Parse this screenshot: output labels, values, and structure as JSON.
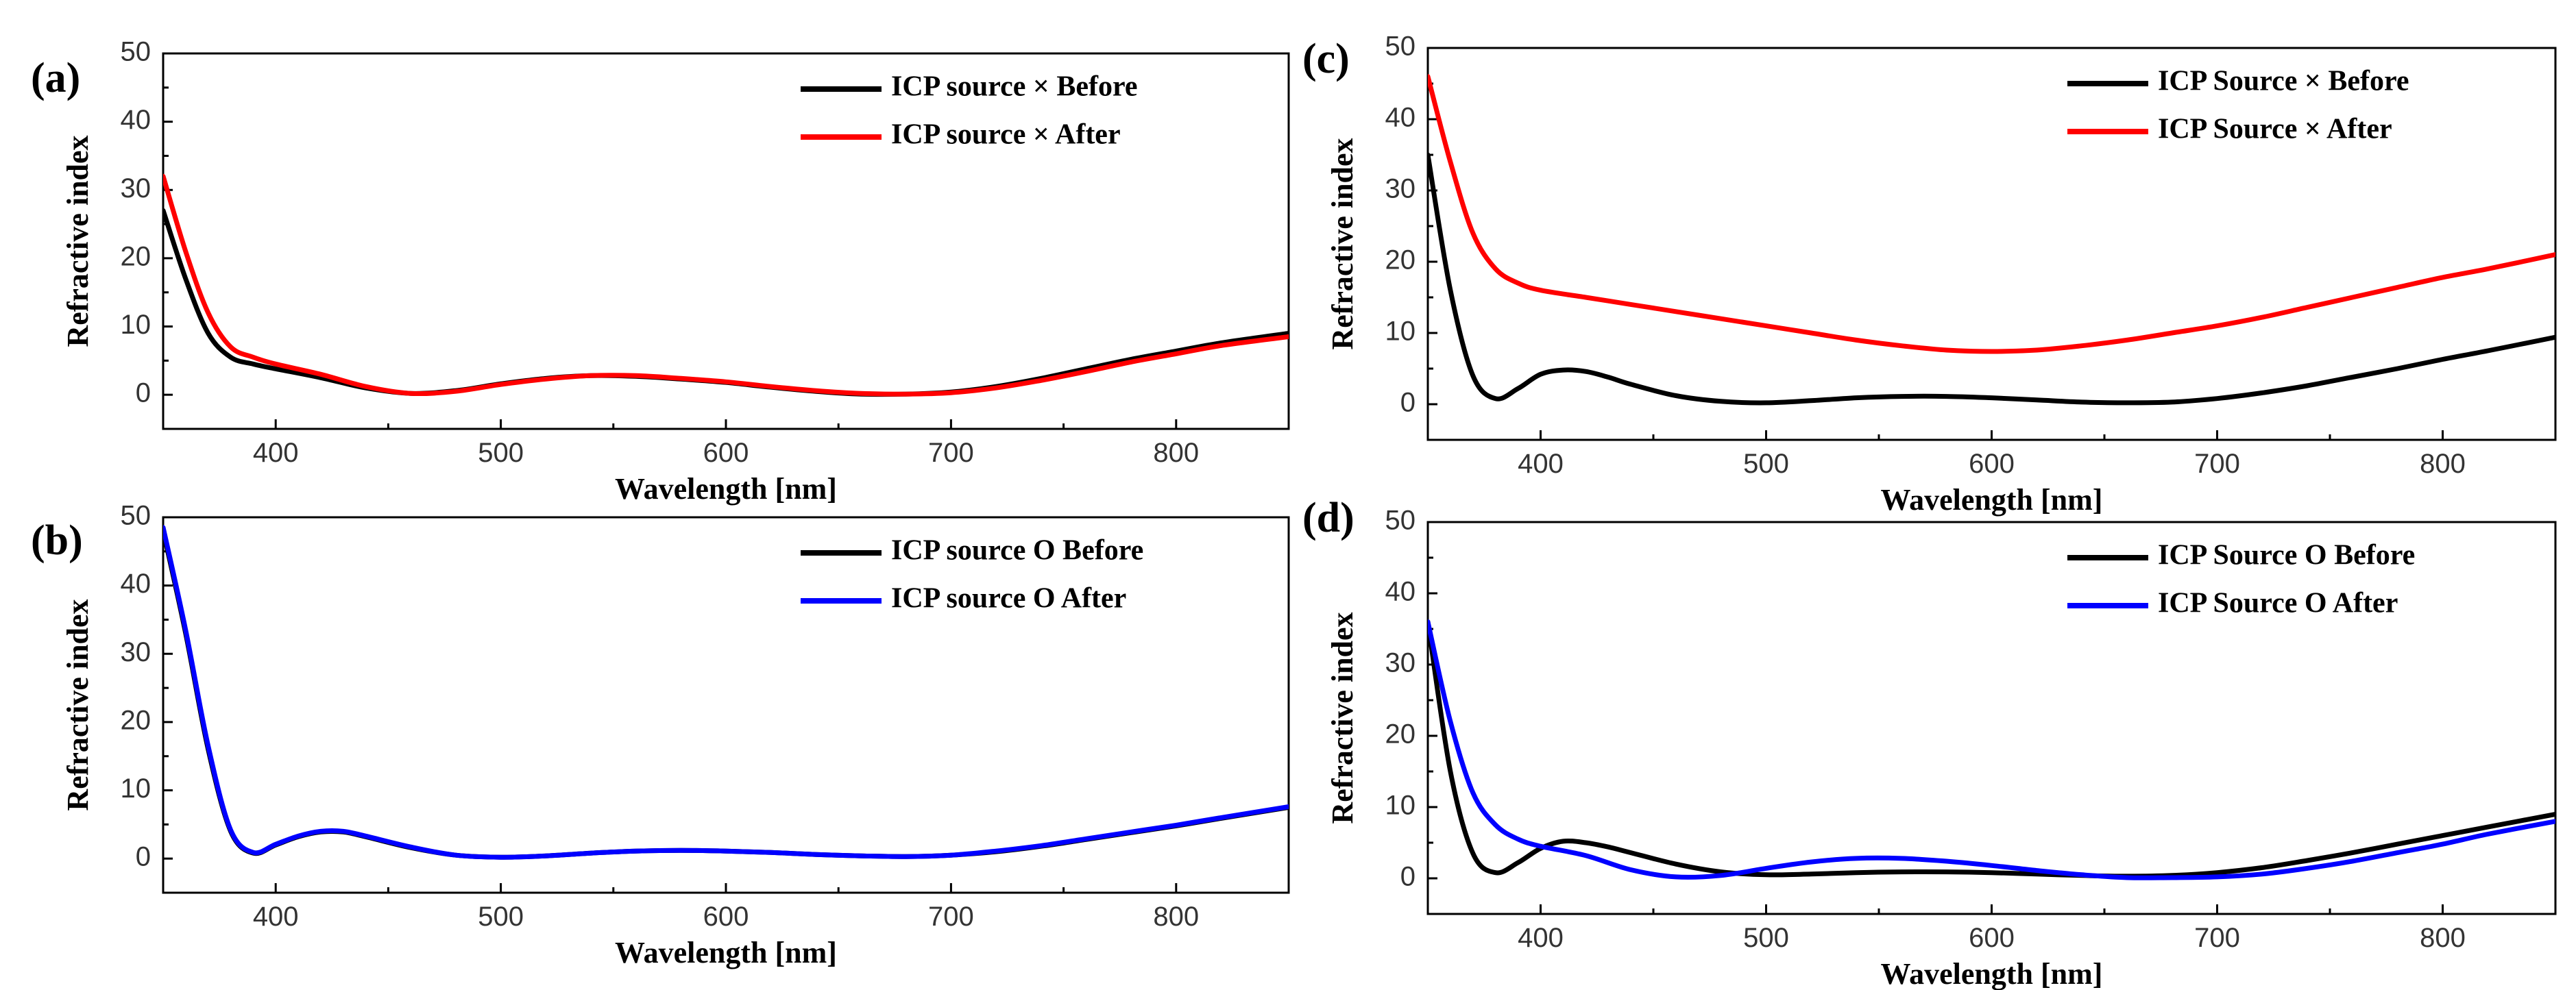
{
  "chart_data": [
    {
      "panel": "(a)",
      "type": "line",
      "xlabel": "Wavelength [nm]",
      "ylabel": "Refractive index",
      "xlim": [
        350,
        850
      ],
      "ylim": [
        -5,
        50
      ],
      "xticks": [
        400,
        500,
        600,
        700,
        800
      ],
      "yticks": [
        0,
        10,
        20,
        30,
        40,
        50
      ],
      "legend_position": "top-right",
      "series": [
        {
          "name": "ICP source × Before",
          "color": "#000000",
          "x": [
            350,
            360,
            370,
            380,
            390,
            400,
            420,
            440,
            460,
            480,
            500,
            520,
            540,
            560,
            580,
            600,
            620,
            640,
            660,
            680,
            700,
            720,
            740,
            760,
            780,
            800,
            820,
            850
          ],
          "y": [
            27,
            17,
            9,
            5.5,
            4.5,
            3.8,
            2.5,
            1.0,
            0.2,
            0.6,
            1.6,
            2.4,
            2.8,
            2.7,
            2.3,
            1.8,
            1.1,
            0.5,
            0.1,
            0.1,
            0.4,
            1.2,
            2.4,
            3.8,
            5.2,
            6.4,
            7.6,
            9
          ]
        },
        {
          "name": "ICP source × After",
          "color": "#ff0000",
          "x": [
            350,
            360,
            370,
            380,
            390,
            400,
            420,
            440,
            460,
            480,
            500,
            520,
            540,
            560,
            580,
            600,
            620,
            640,
            660,
            680,
            700,
            720,
            740,
            760,
            780,
            800,
            820,
            850
          ],
          "y": [
            32,
            21,
            12,
            7,
            5.5,
            4.5,
            3.0,
            1.2,
            0.2,
            0.5,
            1.5,
            2.3,
            2.8,
            2.8,
            2.4,
            1.9,
            1.2,
            0.6,
            0.2,
            0.1,
            0.3,
            1.0,
            2.1,
            3.4,
            4.8,
            6.0,
            7.2,
            8.5
          ]
        }
      ]
    },
    {
      "panel": "(b)",
      "type": "line",
      "xlabel": "Wavelength [nm]",
      "ylabel": "Refractive index",
      "xlim": [
        350,
        850
      ],
      "ylim": [
        -5,
        50
      ],
      "xticks": [
        400,
        500,
        600,
        700,
        800
      ],
      "yticks": [
        0,
        10,
        20,
        30,
        40,
        50
      ],
      "legend_position": "top-right",
      "series": [
        {
          "name": "ICP source O Before",
          "color": "#000000",
          "x": [
            350,
            360,
            370,
            380,
            390,
            400,
            410,
            420,
            430,
            440,
            460,
            480,
            500,
            520,
            540,
            560,
            580,
            600,
            620,
            640,
            660,
            680,
            700,
            720,
            740,
            760,
            780,
            800,
            820,
            850
          ],
          "y": [
            48,
            33,
            16,
            4,
            0.8,
            2,
            3.2,
            3.9,
            3.9,
            3.2,
            1.6,
            0.5,
            0.2,
            0.4,
            0.8,
            1.1,
            1.2,
            1.1,
            0.9,
            0.6,
            0.4,
            0.3,
            0.5,
            1.0,
            1.8,
            2.8,
            3.8,
            4.8,
            5.9,
            7.5
          ]
        },
        {
          "name": "ICP source O After",
          "color": "#0000ff",
          "x": [
            350,
            360,
            370,
            380,
            390,
            400,
            410,
            420,
            430,
            440,
            460,
            480,
            500,
            520,
            540,
            560,
            580,
            600,
            620,
            640,
            660,
            680,
            700,
            720,
            740,
            760,
            780,
            800,
            820,
            850
          ],
          "y": [
            48.5,
            33.5,
            16.5,
            4.2,
            0.9,
            2.1,
            3.3,
            4.0,
            4.0,
            3.3,
            1.7,
            0.5,
            0.2,
            0.4,
            0.8,
            1.1,
            1.2,
            1.1,
            0.9,
            0.6,
            0.4,
            0.3,
            0.5,
            1.1,
            1.9,
            2.9,
            3.9,
            4.9,
            6.0,
            7.6
          ]
        }
      ]
    },
    {
      "panel": "(c)",
      "type": "line",
      "xlabel": "Wavelength [nm]",
      "ylabel": "Refractive index",
      "xlim": [
        350,
        850
      ],
      "ylim": [
        -5,
        50
      ],
      "xticks": [
        400,
        500,
        600,
        700,
        800
      ],
      "yticks": [
        0,
        10,
        20,
        30,
        40,
        50
      ],
      "legend_position": "top-right",
      "series": [
        {
          "name": "ICP Source × Before",
          "color": "#000000",
          "x": [
            350,
            360,
            370,
            380,
            390,
            400,
            410,
            420,
            430,
            440,
            460,
            480,
            500,
            520,
            540,
            560,
            580,
            600,
            620,
            640,
            660,
            680,
            700,
            720,
            740,
            760,
            780,
            800,
            820,
            850
          ],
          "y": [
            35,
            16,
            4,
            0.8,
            2.2,
            4.2,
            4.8,
            4.6,
            3.8,
            2.8,
            1.2,
            0.4,
            0.2,
            0.5,
            0.9,
            1.1,
            1.1,
            0.9,
            0.6,
            0.3,
            0.2,
            0.3,
            0.8,
            1.6,
            2.6,
            3.8,
            5.0,
            6.3,
            7.5,
            9.4
          ]
        },
        {
          "name": "ICP Source × After",
          "color": "#ff0000",
          "x": [
            350,
            360,
            370,
            380,
            390,
            400,
            420,
            440,
            460,
            480,
            500,
            520,
            540,
            560,
            580,
            600,
            620,
            640,
            660,
            680,
            700,
            720,
            740,
            760,
            780,
            800,
            820,
            850
          ],
          "y": [
            46,
            34,
            24,
            19,
            17,
            16,
            15,
            14,
            13,
            12,
            11,
            10,
            9,
            8.2,
            7.6,
            7.4,
            7.6,
            8.2,
            9.0,
            10,
            11,
            12.2,
            13.6,
            15,
            16.4,
            17.8,
            19,
            21
          ]
        }
      ]
    },
    {
      "panel": "(d)",
      "type": "line",
      "xlabel": "Wavelength [nm]",
      "ylabel": "Refractive index",
      "xlim": [
        350,
        850
      ],
      "ylim": [
        -5,
        50
      ],
      "xticks": [
        400,
        500,
        600,
        700,
        800
      ],
      "yticks": [
        0,
        10,
        20,
        30,
        40,
        50
      ],
      "legend_position": "top-right",
      "series": [
        {
          "name": "ICP Source O Before",
          "color": "#000000",
          "x": [
            350,
            360,
            370,
            380,
            390,
            400,
            410,
            420,
            430,
            440,
            460,
            480,
            500,
            520,
            540,
            560,
            580,
            600,
            620,
            640,
            660,
            680,
            700,
            720,
            740,
            760,
            780,
            800,
            820,
            850
          ],
          "y": [
            36,
            15,
            3.5,
            0.8,
            2.2,
            4.2,
            5.2,
            5.0,
            4.4,
            3.6,
            2.0,
            0.9,
            0.5,
            0.6,
            0.8,
            0.9,
            0.9,
            0.8,
            0.6,
            0.4,
            0.3,
            0.4,
            0.8,
            1.5,
            2.5,
            3.6,
            4.8,
            6.0,
            7.2,
            9
          ]
        },
        {
          "name": "ICP Source O After",
          "color": "#0000ff",
          "x": [
            350,
            360,
            370,
            380,
            390,
            400,
            420,
            440,
            460,
            480,
            500,
            520,
            540,
            560,
            580,
            600,
            620,
            640,
            660,
            680,
            700,
            720,
            740,
            760,
            780,
            800,
            820,
            850
          ],
          "y": [
            36,
            22,
            12,
            7.5,
            5.5,
            4.5,
            3.2,
            1.2,
            0.2,
            0.4,
            1.4,
            2.3,
            2.8,
            2.8,
            2.4,
            1.8,
            1.1,
            0.5,
            0.1,
            0.1,
            0.2,
            0.6,
            1.4,
            2.4,
            3.6,
            4.8,
            6.2,
            8
          ]
        }
      ]
    }
  ]
}
